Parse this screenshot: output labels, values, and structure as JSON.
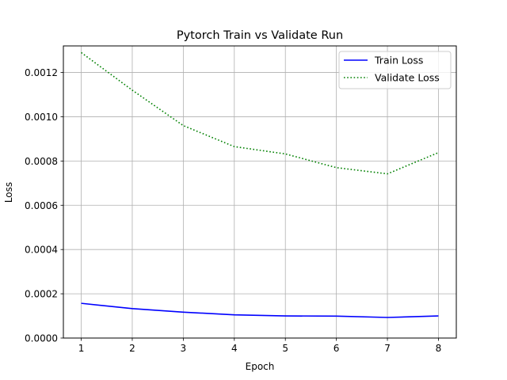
{
  "chart_data": {
    "type": "line",
    "title": "Pytorch Train vs Validate Run",
    "xlabel": "Epoch",
    "ylabel": "Loss",
    "x": [
      1,
      2,
      3,
      4,
      5,
      6,
      7,
      8
    ],
    "xlim": [
      0.65,
      8.35
    ],
    "ylim": [
      0,
      0.00132
    ],
    "xticks": [
      1,
      2,
      3,
      4,
      5,
      6,
      7,
      8
    ],
    "xtick_labels": [
      "1",
      "2",
      "3",
      "4",
      "5",
      "6",
      "7",
      "8"
    ],
    "yticks": [
      0,
      0.0002,
      0.0004,
      0.0006,
      0.0008,
      0.001,
      0.0012
    ],
    "ytick_labels": [
      "0.0000",
      "0.0002",
      "0.0004",
      "0.0006",
      "0.0008",
      "0.0010",
      "0.0012"
    ],
    "grid": true,
    "legend_position": "top-right",
    "series": [
      {
        "name": "Train Loss",
        "color": "#0000ff",
        "linestyle": "solid",
        "values": [
          0.000157,
          0.000133,
          0.000117,
          0.000105,
          0.0001,
          9.9e-05,
          9.3e-05,
          0.0001
        ]
      },
      {
        "name": "Validate Loss",
        "color": "#008000",
        "linestyle": "dotted",
        "values": [
          0.00129,
          0.00112,
          0.00096,
          0.000865,
          0.000832,
          0.00077,
          0.000742,
          0.000838
        ]
      }
    ]
  }
}
